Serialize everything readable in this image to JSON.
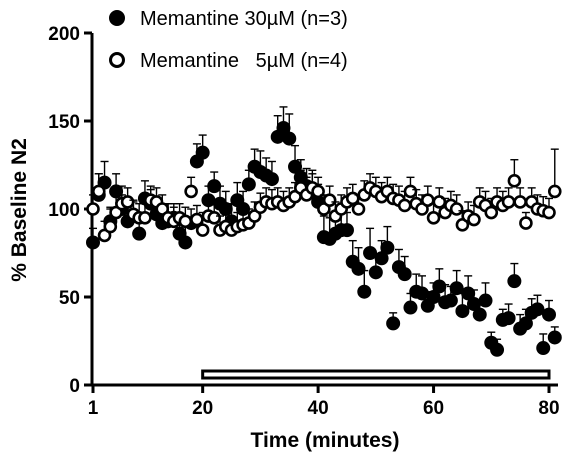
{
  "chart_data": {
    "type": "scatter",
    "xlabel": "Time (minutes)",
    "ylabel": "% Baseline N2",
    "xlim": [
      0,
      82
    ],
    "ylim": [
      0,
      200
    ],
    "xticks": [
      1,
      20,
      40,
      60,
      80
    ],
    "yticks": [
      0,
      50,
      100,
      150,
      200
    ],
    "grid": false,
    "legend_position": "top-left",
    "drug_application": {
      "start": 20,
      "end": 80
    },
    "series": [
      {
        "name": "Memantine 30µM (n=3)",
        "marker": "filled-circle",
        "color": "#000000",
        "points": [
          {
            "x": 1,
            "y": 81,
            "err": 8
          },
          {
            "x": 2,
            "y": 108,
            "err": 12
          },
          {
            "x": 3,
            "y": 115,
            "err": 12
          },
          {
            "x": 4,
            "y": 93,
            "err": 8
          },
          {
            "x": 5,
            "y": 110,
            "err": 10
          },
          {
            "x": 6,
            "y": 100,
            "err": 8
          },
          {
            "x": 7,
            "y": 93,
            "err": 8
          },
          {
            "x": 8,
            "y": 96,
            "err": 8
          },
          {
            "x": 9,
            "y": 86,
            "err": 8
          },
          {
            "x": 10,
            "y": 106,
            "err": 10
          },
          {
            "x": 11,
            "y": 103,
            "err": 8
          },
          {
            "x": 12,
            "y": 97,
            "err": 8
          },
          {
            "x": 13,
            "y": 92,
            "err": 8
          },
          {
            "x": 14,
            "y": 93,
            "err": 10
          },
          {
            "x": 15,
            "y": 95,
            "err": 8
          },
          {
            "x": 16,
            "y": 86,
            "err": 8
          },
          {
            "x": 17,
            "y": 81,
            "err": 12
          },
          {
            "x": 18,
            "y": 92,
            "err": 8
          },
          {
            "x": 19,
            "y": 127,
            "err": 10
          },
          {
            "x": 20,
            "y": 132,
            "err": 10
          },
          {
            "x": 21,
            "y": 105,
            "err": 8
          },
          {
            "x": 22,
            "y": 113,
            "err": 8
          },
          {
            "x": 23,
            "y": 103,
            "err": 10
          },
          {
            "x": 24,
            "y": 100,
            "err": 10
          },
          {
            "x": 25,
            "y": 93,
            "err": 10
          },
          {
            "x": 26,
            "y": 105,
            "err": 10
          },
          {
            "x": 27,
            "y": 100,
            "err": 10
          },
          {
            "x": 28,
            "y": 114,
            "err": 8
          },
          {
            "x": 29,
            "y": 124,
            "err": 10
          },
          {
            "x": 30,
            "y": 121,
            "err": 12
          },
          {
            "x": 31,
            "y": 119,
            "err": 10
          },
          {
            "x": 32,
            "y": 117,
            "err": 10
          },
          {
            "x": 33,
            "y": 141,
            "err": 12
          },
          {
            "x": 34,
            "y": 146,
            "err": 12
          },
          {
            "x": 35,
            "y": 140,
            "err": 14
          },
          {
            "x": 36,
            "y": 124,
            "err": 12
          },
          {
            "x": 37,
            "y": 118,
            "err": 10
          },
          {
            "x": 38,
            "y": 113,
            "err": 10
          },
          {
            "x": 39,
            "y": 110,
            "err": 10
          },
          {
            "x": 40,
            "y": 104,
            "err": 10
          },
          {
            "x": 41,
            "y": 84,
            "err": 12
          },
          {
            "x": 42,
            "y": 83,
            "err": 12
          },
          {
            "x": 43,
            "y": 86,
            "err": 10
          },
          {
            "x": 44,
            "y": 88,
            "err": 10
          },
          {
            "x": 45,
            "y": 88,
            "err": 10
          },
          {
            "x": 46,
            "y": 70,
            "err": 12
          },
          {
            "x": 47,
            "y": 66,
            "err": 12
          },
          {
            "x": 48,
            "y": 53,
            "err": 12
          },
          {
            "x": 49,
            "y": 75,
            "err": 14
          },
          {
            "x": 50,
            "y": 64,
            "err": 10
          },
          {
            "x": 51,
            "y": 72,
            "err": 10
          },
          {
            "x": 52,
            "y": 78,
            "err": 12
          },
          {
            "x": 53,
            "y": 35,
            "err": 6
          },
          {
            "x": 54,
            "y": 67,
            "err": 10
          },
          {
            "x": 55,
            "y": 63,
            "err": 10
          },
          {
            "x": 56,
            "y": 44,
            "err": 8
          },
          {
            "x": 57,
            "y": 53,
            "err": 10
          },
          {
            "x": 58,
            "y": 52,
            "err": 10
          },
          {
            "x": 59,
            "y": 45,
            "err": 8
          },
          {
            "x": 60,
            "y": 50,
            "err": 8
          },
          {
            "x": 61,
            "y": 56,
            "err": 10
          },
          {
            "x": 62,
            "y": 47,
            "err": 10
          },
          {
            "x": 63,
            "y": 48,
            "err": 8
          },
          {
            "x": 64,
            "y": 55,
            "err": 10
          },
          {
            "x": 65,
            "y": 42,
            "err": 10
          },
          {
            "x": 66,
            "y": 52,
            "err": 10
          },
          {
            "x": 67,
            "y": 46,
            "err": 8
          },
          {
            "x": 68,
            "y": 40,
            "err": 8
          },
          {
            "x": 69,
            "y": 48,
            "err": 10
          },
          {
            "x": 70,
            "y": 24,
            "err": 6
          },
          {
            "x": 71,
            "y": 20,
            "err": 6
          },
          {
            "x": 72,
            "y": 37,
            "err": 6
          },
          {
            "x": 73,
            "y": 38,
            "err": 8
          },
          {
            "x": 74,
            "y": 59,
            "err": 10
          },
          {
            "x": 75,
            "y": 32,
            "err": 8
          },
          {
            "x": 76,
            "y": 35,
            "err": 8
          },
          {
            "x": 77,
            "y": 41,
            "err": 8
          },
          {
            "x": 78,
            "y": 43,
            "err": 8
          },
          {
            "x": 79,
            "y": 21,
            "err": 8
          },
          {
            "x": 80,
            "y": 40,
            "err": 8
          },
          {
            "x": 81,
            "y": 27,
            "err": 6
          }
        ]
      },
      {
        "name": "Memantine   5µM (n=4)",
        "marker": "open-circle",
        "color": "#000000",
        "points": [
          {
            "x": 1,
            "y": 100,
            "err": 8
          },
          {
            "x": 2,
            "y": 110,
            "err": 10
          },
          {
            "x": 3,
            "y": 85,
            "err": 8
          },
          {
            "x": 4,
            "y": 90,
            "err": 10
          },
          {
            "x": 5,
            "y": 98,
            "err": 10
          },
          {
            "x": 6,
            "y": 103,
            "err": 10
          },
          {
            "x": 7,
            "y": 104,
            "err": 8
          },
          {
            "x": 8,
            "y": 97,
            "err": 8
          },
          {
            "x": 9,
            "y": 95,
            "err": 8
          },
          {
            "x": 10,
            "y": 95,
            "err": 8
          },
          {
            "x": 11,
            "y": 105,
            "err": 8
          },
          {
            "x": 12,
            "y": 104,
            "err": 8
          },
          {
            "x": 13,
            "y": 100,
            "err": 8
          },
          {
            "x": 14,
            "y": 95,
            "err": 8
          },
          {
            "x": 15,
            "y": 93,
            "err": 8
          },
          {
            "x": 16,
            "y": 95,
            "err": 8
          },
          {
            "x": 17,
            "y": 93,
            "err": 8
          },
          {
            "x": 18,
            "y": 110,
            "err": 8
          },
          {
            "x": 19,
            "y": 94,
            "err": 8
          },
          {
            "x": 20,
            "y": 88,
            "err": 10
          },
          {
            "x": 21,
            "y": 96,
            "err": 8
          },
          {
            "x": 22,
            "y": 95,
            "err": 8
          },
          {
            "x": 23,
            "y": 88,
            "err": 8
          },
          {
            "x": 24,
            "y": 90,
            "err": 10
          },
          {
            "x": 25,
            "y": 88,
            "err": 8
          },
          {
            "x": 26,
            "y": 90,
            "err": 8
          },
          {
            "x": 27,
            "y": 91,
            "err": 8
          },
          {
            "x": 28,
            "y": 92,
            "err": 8
          },
          {
            "x": 29,
            "y": 96,
            "err": 8
          },
          {
            "x": 30,
            "y": 101,
            "err": 8
          },
          {
            "x": 31,
            "y": 104,
            "err": 8
          },
          {
            "x": 32,
            "y": 103,
            "err": 8
          },
          {
            "x": 33,
            "y": 104,
            "err": 8
          },
          {
            "x": 34,
            "y": 102,
            "err": 8
          },
          {
            "x": 35,
            "y": 104,
            "err": 8
          },
          {
            "x": 36,
            "y": 107,
            "err": 8
          },
          {
            "x": 37,
            "y": 112,
            "err": 10
          },
          {
            "x": 38,
            "y": 108,
            "err": 10
          },
          {
            "x": 39,
            "y": 112,
            "err": 10
          },
          {
            "x": 40,
            "y": 110,
            "err": 8
          },
          {
            "x": 41,
            "y": 100,
            "err": 8
          },
          {
            "x": 42,
            "y": 105,
            "err": 8
          },
          {
            "x": 43,
            "y": 96,
            "err": 8
          },
          {
            "x": 44,
            "y": 100,
            "err": 8
          },
          {
            "x": 45,
            "y": 104,
            "err": 8
          },
          {
            "x": 46,
            "y": 106,
            "err": 8
          },
          {
            "x": 47,
            "y": 100,
            "err": 8
          },
          {
            "x": 48,
            "y": 108,
            "err": 8
          },
          {
            "x": 49,
            "y": 112,
            "err": 8
          },
          {
            "x": 50,
            "y": 110,
            "err": 8
          },
          {
            "x": 51,
            "y": 107,
            "err": 8
          },
          {
            "x": 52,
            "y": 110,
            "err": 8
          },
          {
            "x": 53,
            "y": 106,
            "err": 8
          },
          {
            "x": 54,
            "y": 105,
            "err": 8
          },
          {
            "x": 55,
            "y": 102,
            "err": 8
          },
          {
            "x": 56,
            "y": 110,
            "err": 8
          },
          {
            "x": 57,
            "y": 103,
            "err": 8
          },
          {
            "x": 58,
            "y": 100,
            "err": 8
          },
          {
            "x": 59,
            "y": 105,
            "err": 8
          },
          {
            "x": 60,
            "y": 95,
            "err": 8
          },
          {
            "x": 61,
            "y": 104,
            "err": 8
          },
          {
            "x": 62,
            "y": 98,
            "err": 8
          },
          {
            "x": 63,
            "y": 102,
            "err": 8
          },
          {
            "x": 64,
            "y": 100,
            "err": 8
          },
          {
            "x": 65,
            "y": 91,
            "err": 8
          },
          {
            "x": 66,
            "y": 96,
            "err": 8
          },
          {
            "x": 67,
            "y": 94,
            "err": 8
          },
          {
            "x": 68,
            "y": 104,
            "err": 8
          },
          {
            "x": 69,
            "y": 102,
            "err": 8
          },
          {
            "x": 70,
            "y": 98,
            "err": 8
          },
          {
            "x": 71,
            "y": 104,
            "err": 8
          },
          {
            "x": 72,
            "y": 102,
            "err": 8
          },
          {
            "x": 73,
            "y": 104,
            "err": 8
          },
          {
            "x": 74,
            "y": 116,
            "err": 12
          },
          {
            "x": 75,
            "y": 104,
            "err": 8
          },
          {
            "x": 76,
            "y": 92,
            "err": 6
          },
          {
            "x": 77,
            "y": 104,
            "err": 8
          },
          {
            "x": 78,
            "y": 100,
            "err": 8
          },
          {
            "x": 79,
            "y": 99,
            "err": 8
          },
          {
            "x": 80,
            "y": 98,
            "err": 8
          },
          {
            "x": 81,
            "y": 110,
            "err": 24
          }
        ]
      }
    ]
  }
}
